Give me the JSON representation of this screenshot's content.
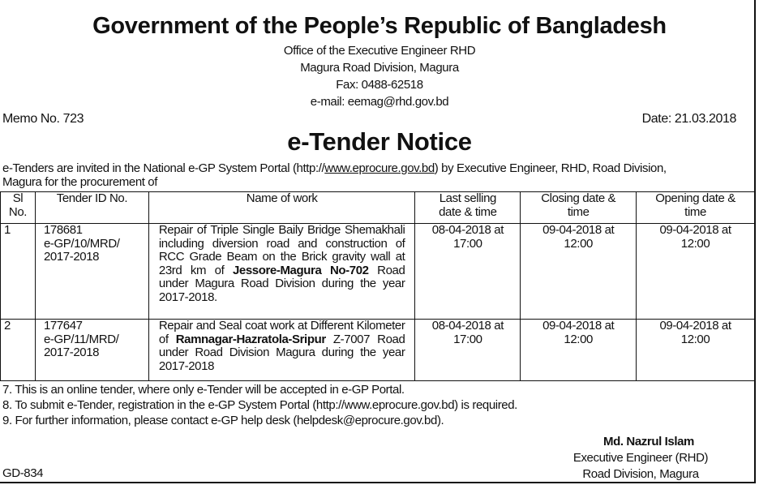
{
  "header": {
    "title": "Government of the People’s Republic of Bangladesh",
    "office": "Office of the Executive Engineer RHD",
    "division": "Magura Road Division, Magura",
    "fax": "Fax: 0488-62518",
    "email": "e-mail: eemag@rhd.gov.bd"
  },
  "memo": "Memo No. 723",
  "date": "Date: 21.03.2018",
  "notice_title": "e-Tender Notice",
  "intro": {
    "part1": "e-Tenders are invited in the National e-GP System Portal (http://",
    "link": "www.eprocure.gov.bd",
    "part2": ") by Executive Engineer, RHD, Road Division,",
    "line2": "Magura for the procurement of"
  },
  "table": {
    "headers": {
      "sl1": "Sl",
      "sl2": "No.",
      "id": "Tender ID No.",
      "name": "Name of work",
      "sell1": "Last selling",
      "sell2": "date & time",
      "close1": "Closing date &",
      "close2": "time",
      "open1": "Opening date &",
      "open2": "time"
    },
    "rows": [
      {
        "sl": "1",
        "id1": "178681",
        "id2": "e-GP/10/MRD/",
        "id3": "2017-2018",
        "w1": "Repair of Triple Single Baily Bridge Shemakhali including diversion road and construction of RCC Grade Beam on the Brick gravity wall at 23rd km of ",
        "wb": "Jessore-Magura No-702",
        "w2": " Road under Magura Road Division during the year 2017-2018.",
        "sell1": "08-04-2018 at",
        "sell2": "17:00",
        "close1": "09-04-2018 at",
        "close2": "12:00",
        "open1": "09-04-2018 at",
        "open2": "12:00"
      },
      {
        "sl": "2",
        "id1": "177647",
        "id2": "e-GP/11/MRD/",
        "id3": "2017-2018",
        "w1": "Repair and Seal coat work at Different Kilometer of ",
        "wb": "Ramnagar-Hazratola-Sripur",
        "w2": " Z-7007 Road under Road Division Magura during the year 2017-2018",
        "sell1": "08-04-2018 at",
        "sell2": "17:00",
        "close1": "09-04-2018 at",
        "close2": "12:00",
        "open1": "09-04-2018 at",
        "open2": "12:00"
      }
    ]
  },
  "notes": [
    "7. This is an online tender, where only e-Tender will be accepted in e-GP Portal.",
    "8. To submit e-Tender, registration in the e-GP System Portal (http://www.eprocure.gov.bd) is required.",
    "9. For further information, please contact e-GP help desk (helpdesk@eprocure.gov.bd)."
  ],
  "signature": {
    "name": "Md. Nazrul Islam",
    "title": "Executive Engineer (RHD)",
    "office": "Road Division, Magura"
  },
  "code": "GD-834"
}
